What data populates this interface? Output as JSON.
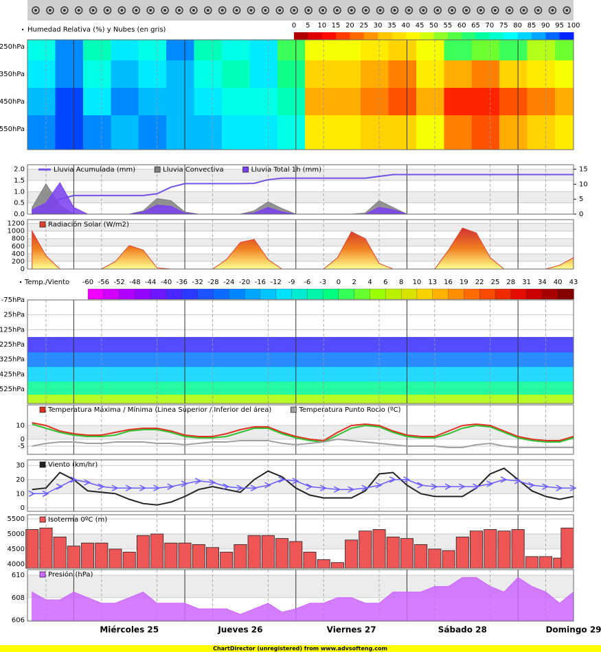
{
  "footer": "ChartDirector (unregistered) from www.advsofteng.com",
  "chart_data": [
    {
      "type": "time-axis",
      "xlim": [
        -10,
        108
      ],
      "x": [
        -9,
        -6,
        -3,
        0,
        3,
        6,
        9,
        12,
        15,
        18,
        21,
        24,
        27,
        30,
        33,
        36,
        39,
        42,
        45,
        48,
        51,
        54,
        57,
        60,
        63,
        66,
        69,
        72,
        75,
        78,
        81,
        84,
        87,
        90,
        93,
        96,
        99,
        102,
        105,
        108
      ],
      "xticks": [
        {
          "value": 12,
          "label": "Miércoles 25"
        },
        {
          "value": 36,
          "label": "Jueves 26"
        },
        {
          "value": 60,
          "label": "Viernes 27"
        },
        {
          "value": 84,
          "label": "Sábado 28"
        },
        {
          "value": 108,
          "label": "Domingo 29"
        }
      ]
    },
    {
      "type": "heatmap",
      "title": "Humedad Relativa (%) y Nubes (en gris)",
      "x": [
        -7,
        -1,
        5,
        11,
        17,
        23,
        29,
        35,
        41,
        47,
        53,
        59,
        65,
        71,
        77,
        83,
        89,
        95,
        101,
        107
      ],
      "y": [
        250,
        350,
        450,
        550
      ],
      "z": [
        [
          75,
          90,
          70,
          80,
          75,
          90,
          70,
          75,
          80,
          60,
          45,
          45,
          40,
          35,
          45,
          60,
          55,
          60,
          50,
          55
        ],
        [
          80,
          90,
          75,
          85,
          80,
          85,
          75,
          70,
          80,
          65,
          35,
          35,
          30,
          25,
          40,
          30,
          25,
          35,
          40,
          45
        ],
        [
          85,
          95,
          80,
          90,
          85,
          85,
          80,
          75,
          75,
          70,
          30,
          30,
          25,
          20,
          30,
          15,
          15,
          20,
          25,
          30
        ],
        [
          90,
          95,
          90,
          85,
          90,
          85,
          85,
          80,
          80,
          75,
          40,
          40,
          35,
          35,
          45,
          25,
          20,
          30,
          35,
          40
        ]
      ],
      "ylim": [
        625,
        225
      ],
      "yticks": [
        {
          "value": 250,
          "label": "250hPa"
        },
        {
          "value": 350,
          "label": "350hPa"
        },
        {
          "value": 450,
          "label": "450hPa"
        },
        {
          "value": 550,
          "label": "550hPa"
        }
      ],
      "colorbar": {
        "ticks": [
          0,
          5,
          10,
          15,
          20,
          25,
          30,
          35,
          40,
          45,
          50,
          55,
          60,
          65,
          70,
          75,
          80,
          85,
          90,
          95,
          100
        ],
        "colors": [
          "#990000",
          "#ff0000",
          "#ff6600",
          "#ffcc00",
          "#ffff00",
          "#66ff33",
          "#00ff99",
          "#00ffff",
          "#0099ff",
          "#0000ff"
        ]
      }
    },
    {
      "type": "area",
      "series": [
        {
          "name": "Lluvia Acumulada (mm)",
          "color": "#7050e8",
          "style": "line",
          "axis": "y2",
          "values": [
            0,
            1,
            5,
            6.2,
            6.2,
            6.2,
            6.2,
            6.2,
            6.2,
            6.8,
            9,
            10.2,
            10.2,
            10.2,
            10.2,
            10.2,
            10.3,
            11.5,
            12,
            12,
            12,
            12,
            12,
            12,
            12,
            12.6,
            13.2,
            13.2,
            13.2,
            13.2,
            13.2,
            13.2,
            13.2,
            13.2,
            13.2,
            13.2,
            13.2,
            13.2,
            13.2,
            13.2
          ]
        },
        {
          "name": "Lluvia Convectiva",
          "color": "#808080",
          "style": "area",
          "values": [
            0.3,
            1.35,
            0.4,
            0,
            0,
            0,
            0,
            0,
            0.15,
            0.7,
            0.6,
            0.1,
            0,
            0,
            0,
            0,
            0.15,
            0.55,
            0.25,
            0,
            0,
            0,
            0,
            0,
            0.05,
            0.6,
            0.3,
            0,
            0,
            0,
            0,
            0,
            0,
            0,
            0,
            0,
            0,
            0,
            0,
            0
          ]
        },
        {
          "name": "Lluvia Total 1h (mm)",
          "color": "#7a3ff0",
          "style": "area",
          "values": [
            0.2,
            0.5,
            1.4,
            0.3,
            0,
            0,
            0,
            0,
            0.1,
            0.4,
            0.35,
            0.05,
            0,
            0,
            0,
            0,
            0.05,
            0.3,
            0.1,
            0,
            0,
            0,
            0,
            0,
            0,
            0.3,
            0.2,
            0,
            0,
            0,
            0,
            0,
            0,
            0,
            0,
            0,
            0,
            0,
            0,
            0
          ]
        }
      ],
      "ylim": [
        0,
        2.2
      ],
      "yticks": [
        {
          "value": 0,
          "label": "0.0"
        },
        0.5,
        {
          "value": 1,
          "label": "1.0"
        },
        1.5,
        {
          "value": 2,
          "label": "2.0"
        }
      ],
      "y2lim": [
        0,
        16.5
      ],
      "y2ticks": [
        0,
        5,
        10,
        15
      ]
    },
    {
      "type": "area",
      "series": [
        {
          "name": "Radiación Solar (W/m2)",
          "color": "#e04030",
          "gradient": [
            "#ffff90",
            "#f08020",
            "#d03030"
          ],
          "style": "area",
          "values": [
            1000,
            350,
            0,
            0,
            0,
            0,
            200,
            620,
            500,
            30,
            0,
            0,
            0,
            0,
            250,
            700,
            780,
            250,
            0,
            0,
            0,
            0,
            300,
            980,
            800,
            150,
            0,
            0,
            0,
            0,
            500,
            1080,
            950,
            300,
            0,
            0,
            0,
            0,
            100,
            300
          ]
        }
      ],
      "ylim": [
        0,
        1300
      ],
      "yticks": [
        0,
        200,
        400,
        600,
        800,
        1000,
        1200
      ]
    },
    {
      "type": "profile",
      "title": "Temp./Viento",
      "levels": [
        225,
        325,
        425,
        525,
        600
      ],
      "values": [
        -36,
        -24,
        -12,
        -3,
        6
      ],
      "ylim": [
        622,
        -75
      ],
      "yticks": [
        {
          "value": -75,
          "label": "-75hPa"
        },
        {
          "value": 25,
          "label": "25hPa"
        },
        {
          "value": 125,
          "label": "125hPa"
        },
        {
          "value": 225,
          "label": "225hPa"
        },
        {
          "value": 325,
          "label": "325hPa"
        },
        {
          "value": 425,
          "label": "425hPa"
        },
        {
          "value": 525,
          "label": "525hPa"
        }
      ],
      "colorbar": {
        "ticks": [
          -60,
          -56,
          -52,
          -48,
          -44,
          -40,
          -36,
          -32,
          -28,
          -24,
          -20,
          -16,
          -12,
          -9,
          -6,
          -3,
          0,
          2,
          4,
          6,
          8,
          10,
          13,
          16,
          19,
          22,
          25,
          28,
          31,
          34,
          40,
          43
        ],
        "colors": [
          "#ff00ff",
          "#a000ff",
          "#3030ff",
          "#0080ff",
          "#00e0ff",
          "#00ff80",
          "#a0ff00",
          "#ffd000",
          "#ff6000",
          "#e00000",
          "#700000"
        ]
      }
    },
    {
      "type": "line",
      "series": [
        {
          "name": "Temperatura Máxima / Mínima (Linea Superior / Inferior del área)",
          "color": "#e03020",
          "low_color": "#30c030",
          "values": [
            12,
            10,
            6,
            4,
            3,
            3,
            5,
            7,
            8,
            8,
            6,
            3,
            2,
            2,
            4,
            7,
            9,
            9,
            5,
            2,
            0,
            -1,
            5,
            10,
            11,
            10,
            6,
            3,
            2,
            2,
            6,
            10,
            11,
            10,
            6,
            2,
            0,
            -1,
            -1,
            2
          ],
          "low": [
            11,
            8,
            5,
            3,
            2,
            2,
            3,
            6,
            7,
            7,
            5,
            2,
            1,
            1,
            2,
            5,
            8,
            8,
            4,
            1,
            -1,
            -2,
            3,
            8,
            10,
            9,
            5,
            2,
            1,
            1,
            4,
            8,
            10,
            9,
            5,
            1,
            -1,
            -2,
            -2,
            1
          ]
        },
        {
          "name": "Temperatura Punto Rocio (ºC)",
          "color": "#a0a0a0",
          "values": [
            -5,
            -3,
            -2,
            -2,
            -3,
            -3,
            -2,
            -2,
            -2,
            -3,
            -3,
            -4,
            -3,
            -2,
            -2,
            -1,
            -1,
            -1,
            -3,
            -4,
            -3,
            -2,
            0,
            -1,
            -2,
            -3,
            -4,
            -5,
            -5,
            -5,
            -6,
            -6,
            -4,
            -3,
            -5,
            -6,
            -6,
            -6,
            -6,
            -6
          ]
        }
      ],
      "ylim": [
        -11,
        25
      ],
      "yticks": [
        -5,
        0,
        10
      ]
    },
    {
      "type": "line",
      "series": [
        {
          "name": "Viento (km/hr)",
          "color": "#222222",
          "values": [
            13,
            14,
            25,
            20,
            12,
            11,
            10,
            6,
            3,
            2,
            4,
            8,
            13,
            15,
            13,
            11,
            20,
            26,
            22,
            14,
            9,
            7,
            7,
            7,
            12,
            24,
            25,
            16,
            10,
            8,
            8,
            8,
            14,
            24,
            28,
            20,
            12,
            8,
            6,
            8
          ]
        },
        {
          "color": "#6a5cff",
          "style": "arrows",
          "values": [
            10,
            10,
            15,
            20,
            18,
            15,
            14,
            14,
            14,
            14,
            15,
            17,
            19,
            18,
            15,
            14,
            14,
            16,
            20,
            19,
            15,
            14,
            13,
            13,
            14,
            16,
            20,
            20,
            16,
            15,
            15,
            15,
            15,
            17,
            20,
            19,
            16,
            15,
            14,
            14
          ]
        }
      ],
      "ylim": [
        -2.5,
        34
      ],
      "yticks": [
        0,
        10,
        20,
        30
      ]
    },
    {
      "type": "bar",
      "series": [
        {
          "name": "Isoterma 0ºC (m)",
          "color": "#ee5555",
          "values": [
            5150,
            5200,
            4900,
            4600,
            4700,
            4700,
            4500,
            4400,
            4950,
            5000,
            4700,
            4700,
            4650,
            4550,
            4400,
            4650,
            4950,
            4950,
            4850,
            4750,
            4400,
            4150,
            4050,
            4800,
            5100,
            5150,
            4900,
            4850,
            4650,
            4500,
            4450,
            4900,
            5100,
            5150,
            5100,
            5150,
            4250,
            4250,
            4200,
            5200
          ]
        }
      ],
      "ylim": [
        3860,
        5640
      ],
      "yticks": [
        4000,
        4500,
        5000,
        5500
      ]
    },
    {
      "type": "area",
      "series": [
        {
          "name": "Presión (hPa)",
          "color": "#cc66ff",
          "style": "area",
          "values": [
            608.5,
            607.8,
            607.8,
            608.5,
            608,
            607.5,
            607.5,
            608,
            608.5,
            607.5,
            607.5,
            607.5,
            607,
            607,
            607,
            606.5,
            607,
            607.5,
            606.7,
            607,
            607.5,
            607.5,
            608,
            608,
            607.5,
            607.5,
            608.5,
            608.5,
            608.5,
            609,
            609,
            609.8,
            609.8,
            609,
            608.5,
            609.8,
            609,
            608.5,
            607.5,
            608.5
          ]
        }
      ],
      "ylim": [
        605.9,
        610.5
      ],
      "yticks": [
        606,
        608,
        610
      ]
    }
  ]
}
